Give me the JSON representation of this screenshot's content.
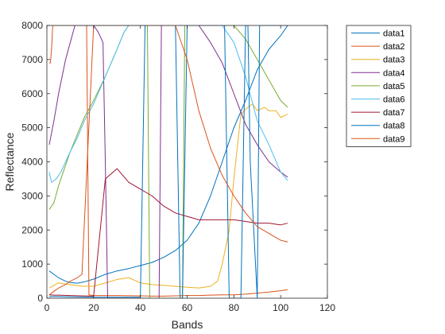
{
  "chart_data": {
    "type": "line",
    "xlabel": "Bands",
    "ylabel": "Reflectance",
    "xlim": [
      0,
      120
    ],
    "ylim": [
      0,
      8000
    ],
    "xticks": [
      0,
      20,
      40,
      60,
      80,
      100,
      120
    ],
    "yticks": [
      0,
      1000,
      2000,
      3000,
      4000,
      5000,
      6000,
      7000,
      8000
    ],
    "grid": false,
    "legend_position": "outside-top-right",
    "series": [
      {
        "name": "data1",
        "color": "#0072BD",
        "x": [
          1,
          3,
          5,
          8,
          10,
          13,
          16,
          20,
          25,
          30,
          35,
          40,
          45,
          50,
          55,
          60,
          65,
          70,
          75,
          80,
          85,
          90,
          95,
          100,
          103
        ],
        "y": [
          800,
          700,
          600,
          500,
          460,
          440,
          480,
          560,
          700,
          800,
          870,
          960,
          1050,
          1200,
          1400,
          1700,
          2200,
          3000,
          4000,
          5000,
          5800,
          6700,
          7300,
          7700,
          8000
        ]
      },
      {
        "name": "data2",
        "color": "#D95319",
        "x": [
          1,
          1.5,
          2,
          2.5,
          3,
          3.5,
          4,
          4.5,
          17,
          17.5,
          18,
          20,
          30,
          40,
          45,
          50,
          55,
          60,
          65,
          70,
          75,
          80,
          85,
          90,
          95,
          100,
          103
        ],
        "y": [
          6900,
          6900,
          7300,
          8000,
          8000,
          8000,
          8000,
          8000,
          8000,
          4000,
          100,
          80,
          80,
          70,
          60,
          60,
          70,
          80,
          80,
          90,
          100,
          100,
          120,
          150,
          180,
          220,
          250
        ]
      },
      {
        "name": "data3",
        "color": "#EDB120",
        "x": [
          1,
          5,
          10,
          15,
          20,
          25,
          30,
          35,
          40,
          45,
          50,
          55,
          60,
          65,
          70,
          73,
          75,
          78,
          80,
          83,
          86,
          88,
          90,
          93,
          95,
          98,
          100,
          103
        ],
        "y": [
          300,
          450,
          400,
          350,
          350,
          450,
          550,
          600,
          450,
          400,
          380,
          350,
          320,
          300,
          350,
          500,
          1000,
          2000,
          3500,
          5400,
          5600,
          5700,
          5500,
          5600,
          5500,
          5500,
          5300,
          5400
        ]
      },
      {
        "name": "data4",
        "color": "#7E2F8E",
        "x": [
          1,
          3,
          5,
          8,
          10,
          12,
          14,
          20,
          22,
          24,
          25,
          26,
          48,
          48.5,
          49,
          50,
          55,
          60,
          65,
          70,
          75,
          80,
          85,
          90,
          95,
          100,
          103
        ],
        "y": [
          4500,
          5200,
          6000,
          7000,
          7500,
          8000,
          8000,
          8000,
          7800,
          7500,
          4000,
          0,
          0,
          4000,
          8000,
          8000,
          8000,
          8000,
          8000,
          7500,
          6900,
          6000,
          5100,
          4500,
          4000,
          3700,
          3550
        ]
      },
      {
        "name": "data5",
        "color": "#77AC30",
        "x": [
          1,
          3,
          5,
          8,
          10,
          13,
          16,
          20,
          25,
          30,
          33,
          35,
          36,
          43,
          43.5,
          44,
          45,
          58,
          58.5,
          59,
          60,
          80,
          85,
          90,
          95,
          100,
          103
        ],
        "y": [
          2600,
          2800,
          3300,
          3900,
          4300,
          4800,
          5300,
          5800,
          6500,
          7300,
          7800,
          8000,
          8000,
          8000,
          4000,
          0,
          0,
          0,
          4000,
          8000,
          8000,
          8000,
          7600,
          7000,
          6400,
          5800,
          5600
        ]
      },
      {
        "name": "data6",
        "color": "#4DBEEE",
        "x": [
          1,
          2,
          4,
          6,
          8,
          10,
          13,
          16,
          20,
          25,
          30,
          33,
          35,
          40,
          45,
          50,
          55,
          60,
          65,
          70,
          75,
          80,
          85,
          90,
          95,
          100,
          103
        ],
        "y": [
          3700,
          3400,
          3500,
          3700,
          4000,
          4300,
          4700,
          5200,
          5700,
          6500,
          7300,
          7800,
          8000,
          8000,
          8000,
          8000,
          8000,
          8000,
          8000,
          8000,
          8000,
          7500,
          6500,
          5200,
          4500,
          3700,
          3450
        ]
      },
      {
        "name": "data7",
        "color": "#A2142F",
        "x": [
          1,
          3,
          5,
          10,
          15,
          20,
          25,
          30,
          35,
          40,
          45,
          50,
          55,
          60,
          65,
          70,
          75,
          80,
          85,
          90,
          95,
          100,
          103
        ],
        "y": [
          100,
          90,
          90,
          80,
          70,
          60,
          3500,
          3800,
          3400,
          3200,
          3000,
          2700,
          2500,
          2400,
          2300,
          2300,
          2300,
          2300,
          2250,
          2200,
          2200,
          2150,
          2200
        ]
      },
      {
        "name": "data8",
        "color": "#0072BD",
        "x": [
          1,
          5,
          10,
          20,
          30,
          40,
          41,
          42,
          43,
          44,
          55,
          56,
          57,
          58,
          59,
          60,
          76,
          77,
          78,
          79,
          80,
          83,
          84,
          85,
          86,
          87,
          90,
          91,
          103
        ],
        "y": [
          50,
          50,
          40,
          30,
          30,
          30,
          4000,
          8000,
          8000,
          8000,
          8000,
          4000,
          0,
          0,
          4000,
          8000,
          8000,
          4000,
          0,
          0,
          0,
          0,
          4000,
          8000,
          8000,
          4000,
          0,
          8000,
          8000
        ]
      },
      {
        "name": "data9",
        "color": "#D95319",
        "x": [
          1,
          3,
          5,
          8,
          10,
          13,
          15,
          20,
          25,
          30,
          35,
          40,
          45,
          50,
          55,
          60,
          65,
          70,
          75,
          80,
          85,
          90,
          95,
          100,
          103
        ],
        "y": [
          100,
          200,
          300,
          400,
          500,
          600,
          700,
          8000,
          8000,
          8000,
          8000,
          8000,
          8000,
          8000,
          8000,
          7000,
          5500,
          4400,
          3600,
          3000,
          2500,
          2100,
          1900,
          1700,
          1650
        ]
      }
    ]
  }
}
